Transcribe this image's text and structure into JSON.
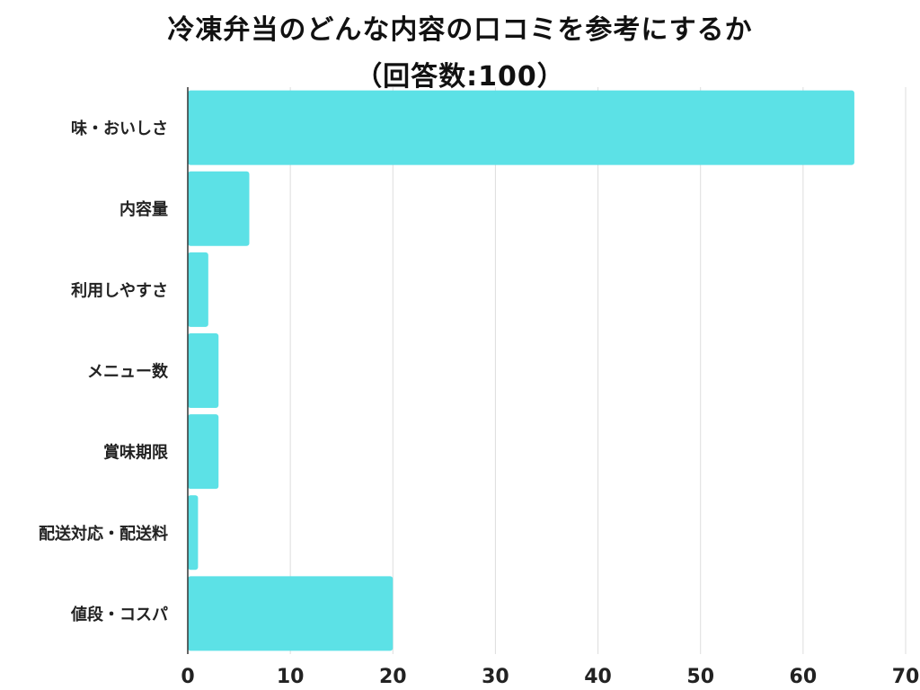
{
  "chart_data": {
    "type": "bar",
    "orientation": "horizontal",
    "title": "冷凍弁当のどんな内容の口コミを参考にするか",
    "subtitle": "（回答数:100）",
    "categories": [
      "味・おいしさ",
      "内容量",
      "利用しやすさ",
      "メニュー数",
      "賞味期限",
      "配送対応・配送料",
      "値段・コスパ"
    ],
    "values": [
      65,
      6,
      2,
      3,
      3,
      1,
      20
    ],
    "xlim": [
      0,
      70
    ],
    "xticks": [
      "0",
      "10",
      "20",
      "30",
      "40",
      "50",
      "60",
      "70"
    ],
    "grid": true,
    "colors": {
      "bar": "#5ce1e6",
      "grid": "#dddddd",
      "axis": "#333333"
    }
  }
}
